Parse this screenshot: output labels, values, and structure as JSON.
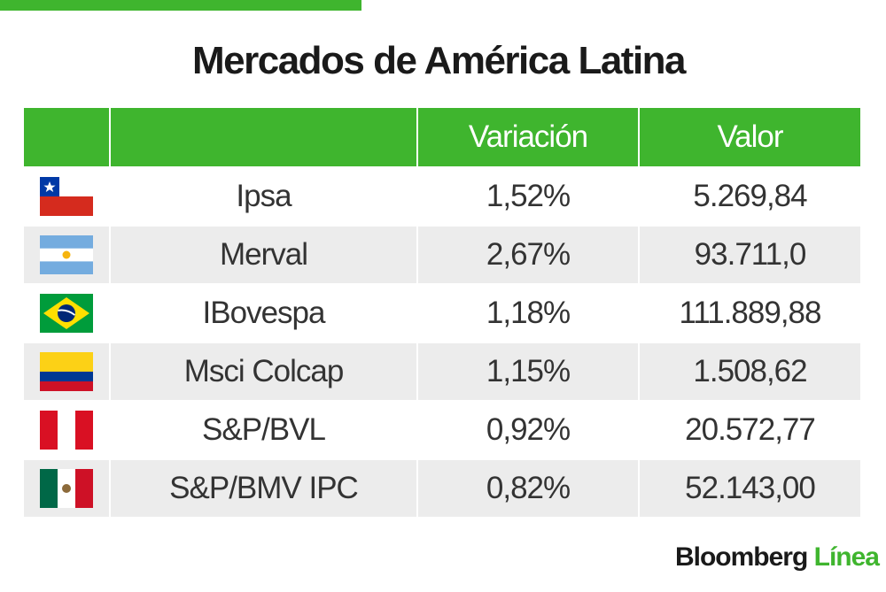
{
  "title": "Mercados de América Latina",
  "table": {
    "headers": [
      "Variación",
      "Valor"
    ],
    "rows": [
      [
        "Ipsa",
        "1,52%",
        "5.269,84"
      ],
      [
        "Merval",
        "2,67%",
        "93.711,0"
      ],
      [
        "IBovespa",
        "1,18%",
        "111.889,88"
      ],
      [
        "Msci Colcap",
        "1,15%",
        "1.508,62"
      ],
      [
        "S&P/BVL",
        "0,92%",
        "20.572,77"
      ],
      [
        "S&P/BMV IPC",
        "0,82%",
        "52.143,00"
      ]
    ]
  },
  "logo": {
    "brand": "Bloomberg",
    "suffix": "Línea"
  }
}
